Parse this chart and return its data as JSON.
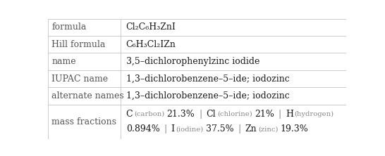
{
  "rows": [
    {
      "label": "formula",
      "type": "formula",
      "content": "Cl₂C₆H₃ZnI"
    },
    {
      "label": "Hill formula",
      "type": "formula",
      "content": "C₆H₃Cl₂IZn"
    },
    {
      "label": "name",
      "type": "text",
      "content": "3,5–dichlorophenylzinc iodide"
    },
    {
      "label": "IUPAC name",
      "type": "text",
      "content": "1,3–dichlorobenzene–5–ide; iodozinc"
    },
    {
      "label": "alternate names",
      "type": "text",
      "content": "1,3–dichlorobenzene–5–ide; iodozinc"
    },
    {
      "label": "mass fractions",
      "type": "mass_fractions",
      "content": ""
    }
  ],
  "mass_fractions_line1": [
    {
      "element": "C",
      "name": "carbon",
      "value": "21.3%"
    },
    {
      "element": "Cl",
      "name": "chlorine",
      "value": "21%"
    },
    {
      "element": "H",
      "name": "hydrogen",
      "value": null
    }
  ],
  "mass_fractions_line2": [
    {
      "element": null,
      "name": null,
      "value": "0.894%"
    },
    {
      "element": "I",
      "name": "iodine",
      "value": "37.5%"
    },
    {
      "element": "Zn",
      "name": "zinc",
      "value": "19.3%"
    }
  ],
  "col_split": 0.243,
  "bg_color": "#ffffff",
  "label_color": "#555555",
  "text_color": "#1a1a1a",
  "sub_color": "#888888",
  "line_color": "#cccccc",
  "font_size": 9.0,
  "row_heights": [
    1,
    1,
    1,
    1,
    1,
    2
  ]
}
